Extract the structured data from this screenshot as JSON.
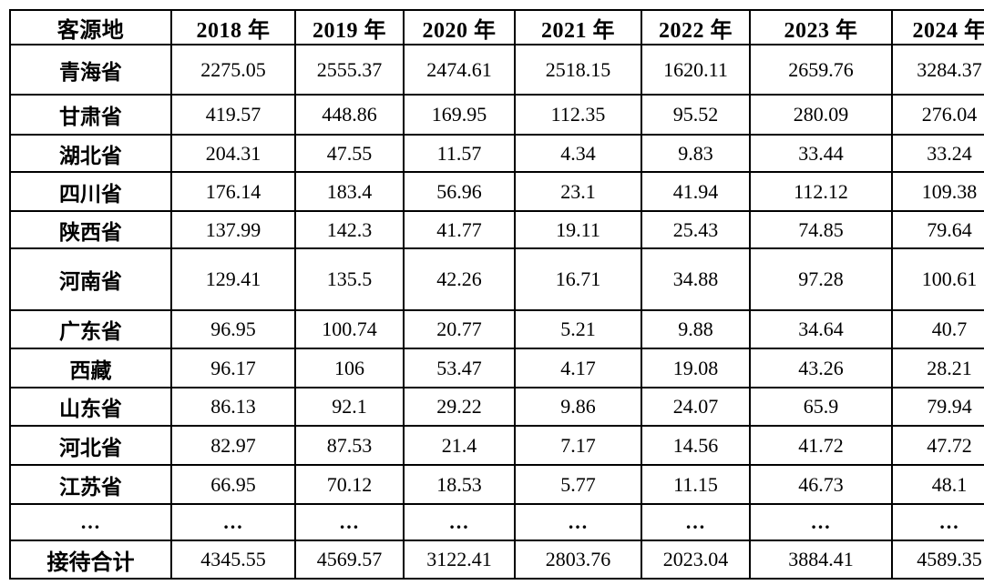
{
  "table": {
    "columns": [
      "客源地",
      "2018 年",
      "2019 年",
      "2020 年",
      "2021 年",
      "2022 年",
      "2023 年",
      "2024 年"
    ],
    "rows": [
      {
        "label": "青海省",
        "values": [
          "2275.05",
          "2555.37",
          "2474.61",
          "2518.15",
          "1620.11",
          "2659.76",
          "3284.37"
        ]
      },
      {
        "label": "甘肃省",
        "values": [
          "419.57",
          "448.86",
          "169.95",
          "112.35",
          "95.52",
          "280.09",
          "276.04"
        ]
      },
      {
        "label": "湖北省",
        "values": [
          "204.31",
          "47.55",
          "11.57",
          "4.34",
          "9.83",
          "33.44",
          "33.24"
        ]
      },
      {
        "label": "四川省",
        "values": [
          "176.14",
          "183.4",
          "56.96",
          "23.1",
          "41.94",
          "112.12",
          "109.38"
        ]
      },
      {
        "label": "陕西省",
        "values": [
          "137.99",
          "142.3",
          "41.77",
          "19.11",
          "25.43",
          "74.85",
          "79.64"
        ]
      },
      {
        "label": "河南省",
        "values": [
          "129.41",
          "135.5",
          "42.26",
          "16.71",
          "34.88",
          "97.28",
          "100.61"
        ]
      },
      {
        "label": "广东省",
        "values": [
          "96.95",
          "100.74",
          "20.77",
          "5.21",
          "9.88",
          "34.64",
          "40.7"
        ]
      },
      {
        "label": "西藏",
        "values": [
          "96.17",
          "106",
          "53.47",
          "4.17",
          "19.08",
          "43.26",
          "28.21"
        ]
      },
      {
        "label": "山东省",
        "values": [
          "86.13",
          "92.1",
          "29.22",
          "9.86",
          "24.07",
          "65.9",
          "79.94"
        ]
      },
      {
        "label": "河北省",
        "values": [
          "82.97",
          "87.53",
          "21.4",
          "7.17",
          "14.56",
          "41.72",
          "47.72"
        ]
      },
      {
        "label": "江苏省",
        "values": [
          "66.95",
          "70.12",
          "18.53",
          "5.77",
          "11.15",
          "46.73",
          "48.1"
        ]
      },
      {
        "label": "…",
        "values": [
          "…",
          "…",
          "…",
          "…",
          "…",
          "…",
          "…"
        ]
      },
      {
        "label": "接待合计",
        "values": [
          "4345.55",
          "4569.57",
          "3122.41",
          "2803.76",
          "2023.04",
          "3884.41",
          "4589.35"
        ]
      }
    ],
    "ellipsis_row_label": "…",
    "total_row_label": "接待合计",
    "colors": {
      "border": "#000000",
      "text": "#000000",
      "background": "#ffffff"
    }
  }
}
